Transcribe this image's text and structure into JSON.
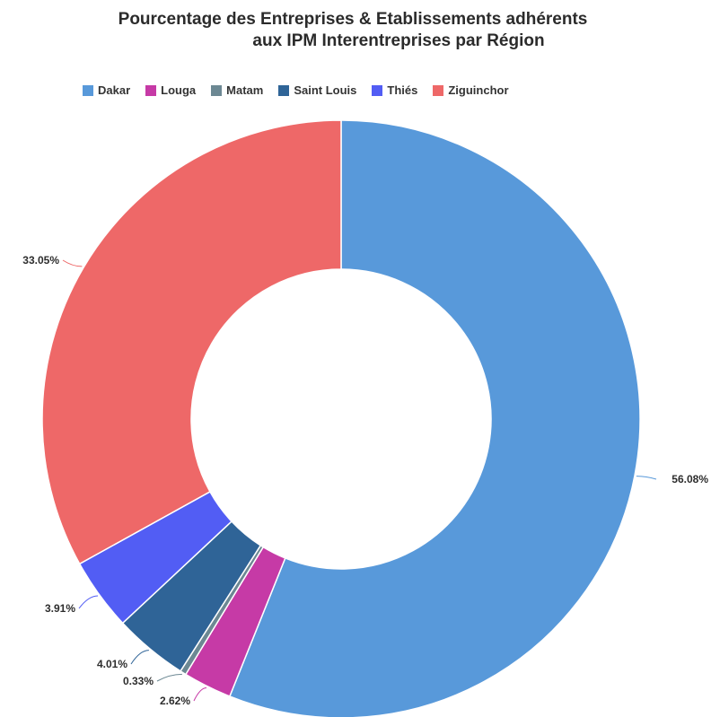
{
  "chart_data": {
    "type": "pie",
    "style": "donut",
    "title_line1": "Pourcentage des Entreprises & Etablissements adhérents",
    "title_line2": "aux IPM Interentreprises par Région",
    "legend_position": "top",
    "series": [
      {
        "name": "Dakar",
        "value": 56.08,
        "label": "56.08%",
        "color": "#5899DA"
      },
      {
        "name": "Louga",
        "value": 2.62,
        "label": "2.62%",
        "color": "#C63AA6"
      },
      {
        "name": "Matam",
        "value": 0.33,
        "label": "0.33%",
        "color": "#6C8893"
      },
      {
        "name": "Saint Louis",
        "value": 4.01,
        "label": "4.01%",
        "color": "#2F6497"
      },
      {
        "name": "Thiés",
        "value": 3.91,
        "label": "3.91%",
        "color": "#525DF4"
      },
      {
        "name": "Ziguinchor",
        "value": 33.05,
        "label": "33.05%",
        "color": "#EE6868"
      }
    ]
  }
}
